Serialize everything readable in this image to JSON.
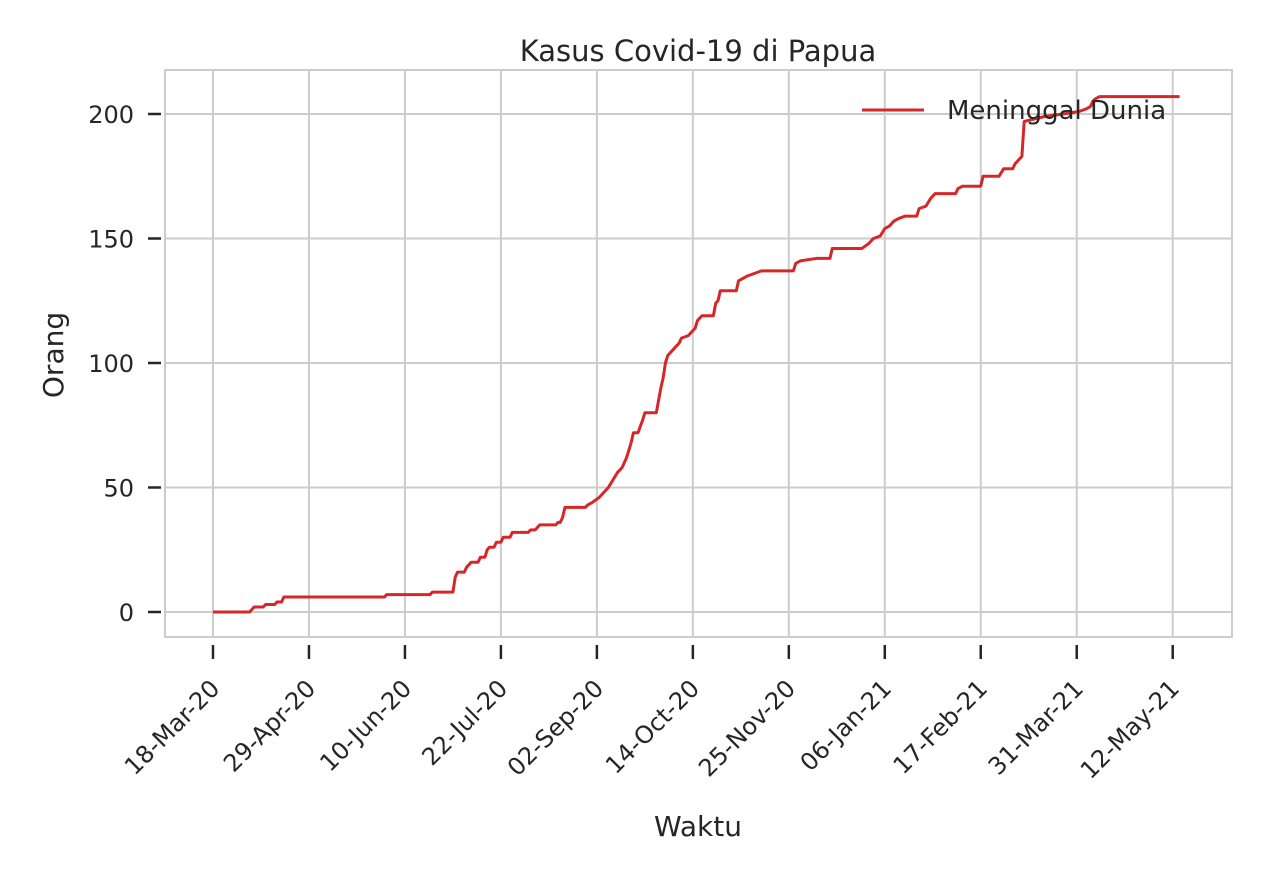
{
  "chart_data": {
    "type": "line",
    "title": "Kasus Covid-19 di Papua",
    "xlabel": "Waktu",
    "ylabel": "Orang",
    "xlim": [
      "2020-03-18",
      "2021-05-15"
    ],
    "ylim": [
      0,
      210
    ],
    "grid": true,
    "legend_position": "top-right",
    "x_ticks": [
      {
        "date": "2020-03-18",
        "label": "18-Mar-20"
      },
      {
        "date": "2020-04-29",
        "label": "29-Apr-20"
      },
      {
        "date": "2020-06-10",
        "label": "10-Jun-20"
      },
      {
        "date": "2020-07-22",
        "label": "22-Jul-20"
      },
      {
        "date": "2020-09-02",
        "label": "02-Sep-20"
      },
      {
        "date": "2020-10-14",
        "label": "14-Oct-20"
      },
      {
        "date": "2020-11-25",
        "label": "25-Nov-20"
      },
      {
        "date": "2021-01-06",
        "label": "06-Jan-21"
      },
      {
        "date": "2021-02-17",
        "label": "17-Feb-21"
      },
      {
        "date": "2021-03-31",
        "label": "31-Mar-21"
      },
      {
        "date": "2021-05-12",
        "label": "12-May-21"
      }
    ],
    "y_ticks": [
      0,
      50,
      100,
      150,
      200
    ],
    "series": [
      {
        "name": "Meninggal Dunia",
        "color": "#d62728",
        "points": [
          [
            "2020-03-18",
            0
          ],
          [
            "2020-04-03",
            0
          ],
          [
            "2020-04-04",
            1
          ],
          [
            "2020-04-05",
            2
          ],
          [
            "2020-04-09",
            2
          ],
          [
            "2020-04-10",
            3
          ],
          [
            "2020-04-14",
            3
          ],
          [
            "2020-04-15",
            4
          ],
          [
            "2020-04-17",
            4
          ],
          [
            "2020-04-18",
            6
          ],
          [
            "2020-06-01",
            6
          ],
          [
            "2020-06-02",
            7
          ],
          [
            "2020-06-21",
            7
          ],
          [
            "2020-06-22",
            8
          ],
          [
            "2020-07-01",
            8
          ],
          [
            "2020-07-02",
            14
          ],
          [
            "2020-07-03",
            16
          ],
          [
            "2020-07-06",
            16
          ],
          [
            "2020-07-07",
            18
          ],
          [
            "2020-07-08",
            19
          ],
          [
            "2020-07-09",
            20
          ],
          [
            "2020-07-12",
            20
          ],
          [
            "2020-07-13",
            22
          ],
          [
            "2020-07-15",
            22
          ],
          [
            "2020-07-16",
            25
          ],
          [
            "2020-07-17",
            26
          ],
          [
            "2020-07-19",
            26
          ],
          [
            "2020-07-20",
            28
          ],
          [
            "2020-07-22",
            28
          ],
          [
            "2020-07-23",
            30
          ],
          [
            "2020-07-26",
            30
          ],
          [
            "2020-07-27",
            32
          ],
          [
            "2020-08-03",
            32
          ],
          [
            "2020-08-04",
            33
          ],
          [
            "2020-08-06",
            33
          ],
          [
            "2020-08-07",
            34
          ],
          [
            "2020-08-08",
            35
          ],
          [
            "2020-08-15",
            35
          ],
          [
            "2020-08-16",
            36
          ],
          [
            "2020-08-17",
            36
          ],
          [
            "2020-08-18",
            38
          ],
          [
            "2020-08-19",
            42
          ],
          [
            "2020-08-28",
            42
          ],
          [
            "2020-08-29",
            43
          ],
          [
            "2020-08-31",
            44
          ],
          [
            "2020-09-03",
            46
          ],
          [
            "2020-09-05",
            48
          ],
          [
            "2020-09-07",
            50
          ],
          [
            "2020-09-09",
            53
          ],
          [
            "2020-09-11",
            56
          ],
          [
            "2020-09-13",
            58
          ],
          [
            "2020-09-15",
            62
          ],
          [
            "2020-09-17",
            68
          ],
          [
            "2020-09-18",
            72
          ],
          [
            "2020-09-20",
            72
          ],
          [
            "2020-09-22",
            77
          ],
          [
            "2020-09-23",
            80
          ],
          [
            "2020-09-28",
            80
          ],
          [
            "2020-09-29",
            85
          ],
          [
            "2020-09-30",
            90
          ],
          [
            "2020-10-01",
            94
          ],
          [
            "2020-10-02",
            100
          ],
          [
            "2020-10-03",
            103
          ],
          [
            "2020-10-05",
            105
          ],
          [
            "2020-10-07",
            107
          ],
          [
            "2020-10-08",
            108
          ],
          [
            "2020-10-09",
            110
          ],
          [
            "2020-10-12",
            111
          ],
          [
            "2020-10-14",
            113
          ],
          [
            "2020-10-15",
            114
          ],
          [
            "2020-10-16",
            117
          ],
          [
            "2020-10-18",
            119
          ],
          [
            "2020-10-23",
            119
          ],
          [
            "2020-10-24",
            124
          ],
          [
            "2020-10-25",
            125
          ],
          [
            "2020-10-26",
            129
          ],
          [
            "2020-11-02",
            129
          ],
          [
            "2020-11-03",
            133
          ],
          [
            "2020-11-05",
            134
          ],
          [
            "2020-11-07",
            135
          ],
          [
            "2020-11-10",
            136
          ],
          [
            "2020-11-13",
            137
          ],
          [
            "2020-11-27",
            137
          ],
          [
            "2020-11-28",
            140
          ],
          [
            "2020-11-30",
            141
          ],
          [
            "2020-12-07",
            142
          ],
          [
            "2020-12-13",
            142
          ],
          [
            "2020-12-14",
            146
          ],
          [
            "2020-12-27",
            146
          ],
          [
            "2020-12-30",
            148
          ],
          [
            "2021-01-01",
            150
          ],
          [
            "2021-01-04",
            151
          ],
          [
            "2021-01-06",
            154
          ],
          [
            "2021-01-08",
            155
          ],
          [
            "2021-01-10",
            157
          ],
          [
            "2021-01-12",
            158
          ],
          [
            "2021-01-15",
            159
          ],
          [
            "2021-01-20",
            159
          ],
          [
            "2021-01-21",
            162
          ],
          [
            "2021-01-24",
            163
          ],
          [
            "2021-01-26",
            166
          ],
          [
            "2021-01-28",
            168
          ],
          [
            "2021-02-06",
            168
          ],
          [
            "2021-02-07",
            170
          ],
          [
            "2021-02-09",
            171
          ],
          [
            "2021-02-17",
            171
          ],
          [
            "2021-02-18",
            175
          ],
          [
            "2021-02-25",
            175
          ],
          [
            "2021-02-27",
            178
          ],
          [
            "2021-03-03",
            178
          ],
          [
            "2021-03-04",
            180
          ],
          [
            "2021-03-06",
            182
          ],
          [
            "2021-03-07",
            183
          ],
          [
            "2021-03-08",
            197
          ],
          [
            "2021-03-17",
            199
          ],
          [
            "2021-03-25",
            200
          ],
          [
            "2021-04-01",
            201
          ],
          [
            "2021-04-04",
            202
          ],
          [
            "2021-04-06",
            203
          ],
          [
            "2021-04-07",
            205
          ],
          [
            "2021-04-08",
            206
          ],
          [
            "2021-04-10",
            207
          ],
          [
            "2021-05-15",
            207
          ]
        ]
      }
    ]
  }
}
